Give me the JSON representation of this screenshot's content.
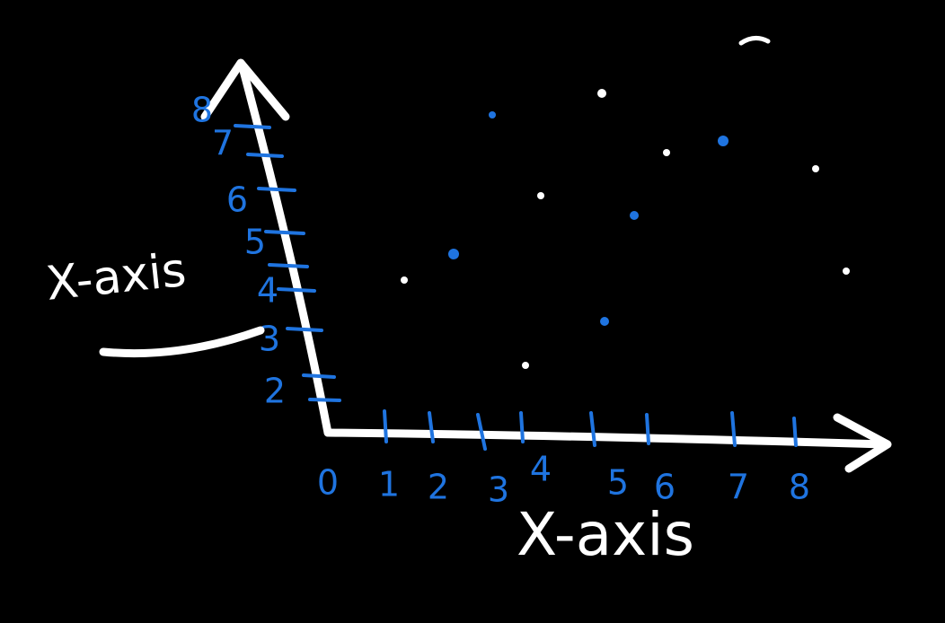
{
  "x_axis": {
    "label": "X-axis",
    "tick_labels": [
      "0",
      "1",
      "2",
      "3",
      "4",
      "5",
      "6",
      "7",
      "8"
    ]
  },
  "y_axis": {
    "label": "X-axis",
    "tick_labels": [
      "8",
      "7",
      "6",
      "5",
      "4",
      "3",
      "2"
    ]
  }
}
